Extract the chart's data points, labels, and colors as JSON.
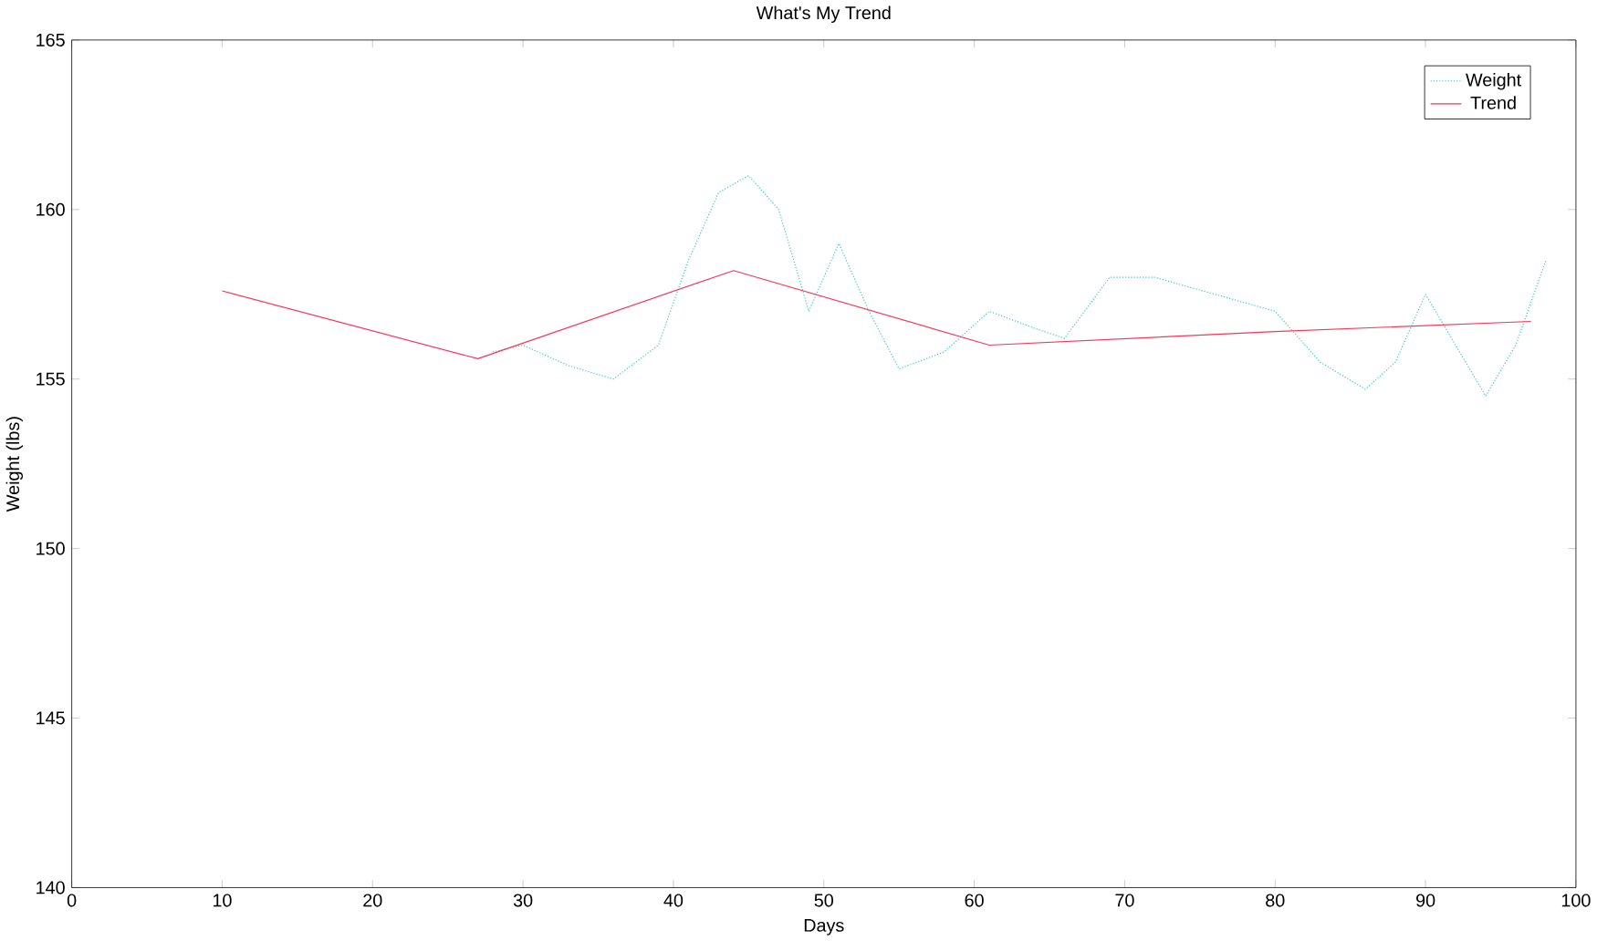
{
  "chart_data": {
    "type": "line",
    "title": "What's My Trend",
    "xlabel": "Days",
    "ylabel": "Weight (lbs)",
    "xlim": [
      0,
      100
    ],
    "ylim": [
      140,
      165
    ],
    "xticks": [
      0,
      10,
      20,
      30,
      40,
      50,
      60,
      70,
      80,
      90,
      100
    ],
    "yticks": [
      140,
      145,
      150,
      155,
      160,
      165
    ],
    "legend": "top right",
    "series": [
      {
        "name": "Weight",
        "color": "#33c6d0",
        "line_style": "dotted",
        "x": [
          28,
          30,
          33,
          36,
          39,
          41,
          43,
          45,
          47,
          49,
          51,
          53,
          55,
          58,
          61,
          64,
          66,
          69,
          72,
          76,
          80,
          83,
          86,
          88,
          90,
          92,
          94,
          96,
          98
        ],
        "values": [
          155.8,
          156,
          155.4,
          155,
          156,
          158.5,
          160.5,
          161,
          160,
          157,
          159,
          157,
          155.3,
          155.8,
          157,
          156.5,
          156.2,
          158,
          158,
          157.5,
          157,
          155.5,
          154.7,
          155.5,
          157.5,
          156,
          154.5,
          156,
          158.5
        ]
      },
      {
        "name": "Trend",
        "color": "#ff3355",
        "line_style": "solid",
        "x": [
          10,
          27,
          44,
          61,
          80,
          97
        ],
        "values": [
          157.6,
          155.6,
          158.2,
          156,
          156.4,
          156.7
        ]
      }
    ]
  }
}
